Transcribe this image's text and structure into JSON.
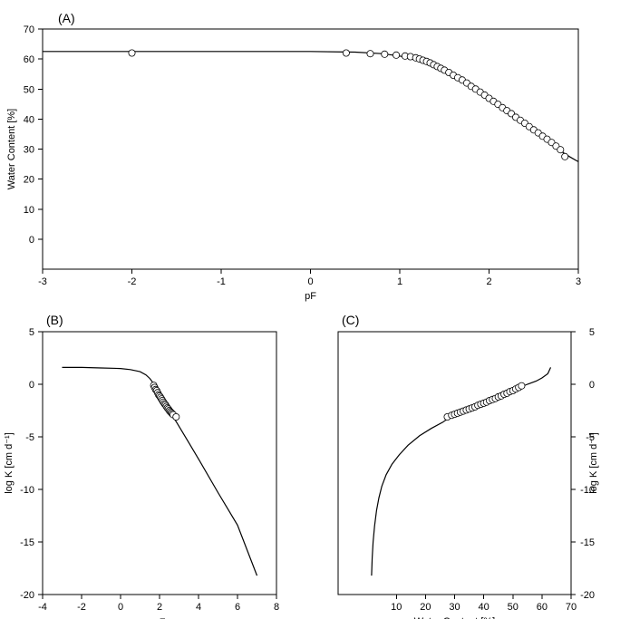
{
  "chart_data": [
    {
      "id": "A",
      "type": "scatter",
      "panel_label": "(A)",
      "xlabel": "pF",
      "ylabel": "Water Content [%]",
      "xlim": [
        -3,
        3
      ],
      "ylim": [
        -10,
        70
      ],
      "xticks": [
        -3,
        -2,
        -1,
        0,
        1,
        2,
        3
      ],
      "yticks": [
        0,
        10,
        20,
        30,
        40,
        50,
        60,
        70
      ],
      "grid": false,
      "series": [
        {
          "kind": "line",
          "x": [
            -3,
            -2,
            -1,
            0,
            0.5,
            0.8,
            1.0,
            1.1,
            1.2,
            1.3,
            1.4,
            1.5,
            1.6,
            1.7,
            1.8,
            1.9,
            2.0,
            2.1,
            2.2,
            2.3,
            2.4,
            2.5,
            2.6,
            2.7,
            2.8,
            2.9,
            3.0
          ],
          "y": [
            62.5,
            62.5,
            62.5,
            62.5,
            62.3,
            61.8,
            61.0,
            60.3,
            59.4,
            58.3,
            57.0,
            55.6,
            54.0,
            52.3,
            50.5,
            48.6,
            46.6,
            44.6,
            42.5,
            40.4,
            38.2,
            36.0,
            33.8,
            31.6,
            29.4,
            27.5,
            25.8
          ]
        },
        {
          "kind": "markers",
          "x": [
            -2,
            0.4,
            0.67,
            0.83,
            0.96,
            1.06,
            1.12,
            1.18,
            1.22,
            1.26,
            1.3,
            1.34,
            1.38,
            1.42,
            1.46,
            1.5,
            1.55,
            1.6,
            1.65,
            1.7,
            1.75,
            1.8,
            1.85,
            1.9,
            1.95,
            2.0,
            2.05,
            2.1,
            2.15,
            2.2,
            2.25,
            2.3,
            2.35,
            2.4,
            2.45,
            2.5,
            2.55,
            2.6,
            2.65,
            2.7,
            2.75,
            2.8,
            2.85
          ],
          "y": [
            62,
            62,
            61.8,
            61.6,
            61.3,
            61.0,
            60.8,
            60.4,
            60.0,
            59.6,
            59.2,
            58.7,
            58.1,
            57.5,
            56.9,
            56.3,
            55.5,
            54.6,
            53.8,
            53.0,
            52.0,
            50.9,
            50.0,
            49.0,
            48.0,
            46.9,
            45.9,
            44.9,
            43.8,
            42.8,
            41.8,
            40.6,
            39.6,
            38.6,
            37.5,
            36.4,
            35.4,
            34.3,
            33.3,
            32.2,
            31.0,
            29.8,
            27.5
          ]
        }
      ]
    },
    {
      "id": "B",
      "type": "scatter",
      "panel_label": "(B)",
      "xlabel": "pF",
      "ylabel": "log K [cm d⁻¹]",
      "xlim": [
        -4,
        8
      ],
      "ylim": [
        -20,
        5
      ],
      "xticks": [
        -4,
        -2,
        0,
        2,
        4,
        6,
        8
      ],
      "yticks": [
        -20,
        -15,
        -10,
        -5,
        0,
        5
      ],
      "grid": false,
      "series": [
        {
          "kind": "line",
          "x": [
            -3,
            -2,
            -1,
            0,
            0.5,
            1.0,
            1.3,
            1.5,
            1.7,
            1.9,
            2.1,
            2.3,
            2.5,
            2.7,
            2.9,
            3.5,
            4.0,
            5.0,
            6.0,
            7.0
          ],
          "y": [
            1.6,
            1.6,
            1.55,
            1.5,
            1.4,
            1.2,
            0.9,
            0.55,
            0.05,
            -0.6,
            -1.25,
            -1.9,
            -2.5,
            -3.1,
            -3.7,
            -5.55,
            -7.1,
            -10.3,
            -13.4,
            -18.2
          ]
        },
        {
          "kind": "markers",
          "x": [
            1.7,
            1.75,
            1.8,
            1.85,
            1.9,
            1.95,
            2.0,
            2.05,
            2.1,
            2.15,
            2.2,
            2.25,
            2.3,
            2.35,
            2.4,
            2.45,
            2.5,
            2.55,
            2.6,
            2.65,
            2.7,
            2.85
          ],
          "y": [
            -0.1,
            -0.3,
            -0.5,
            -0.6,
            -0.8,
            -1.0,
            -1.1,
            -1.25,
            -1.4,
            -1.55,
            -1.7,
            -1.85,
            -1.95,
            -2.1,
            -2.25,
            -2.35,
            -2.5,
            -2.6,
            -2.7,
            -2.8,
            -2.9,
            -3.1
          ]
        }
      ]
    },
    {
      "id": "C",
      "type": "scatter",
      "panel_label": "(C)",
      "xlabel": "Water Content [%]",
      "ylabel": "log K [cm d⁻¹]",
      "xlim": [
        -10,
        70
      ],
      "ylim": [
        -20,
        5
      ],
      "xticks": [
        10,
        20,
        30,
        40,
        50,
        60,
        70
      ],
      "yticks": [
        -20,
        -15,
        -10,
        -5,
        0,
        5
      ],
      "grid": false,
      "series": [
        {
          "kind": "line",
          "x": [
            1.5,
            1.7,
            2.0,
            2.5,
            3.2,
            4.0,
            5.0,
            6.5,
            8.5,
            11,
            14,
            18,
            22,
            26,
            28,
            30,
            35,
            40,
            45,
            50,
            55,
            58,
            60,
            62,
            63
          ],
          "y": [
            -18.2,
            -16.5,
            -15.0,
            -13.5,
            -12.0,
            -10.8,
            -9.7,
            -8.6,
            -7.6,
            -6.7,
            -5.8,
            -4.9,
            -4.2,
            -3.6,
            -3.2,
            -2.9,
            -2.3,
            -1.7,
            -1.15,
            -0.55,
            0.0,
            0.3,
            0.6,
            1.0,
            1.6
          ]
        },
        {
          "kind": "markers",
          "x": [
            27.5,
            29,
            30,
            31,
            32,
            33,
            34,
            35,
            36,
            37,
            38,
            39,
            40,
            41,
            42,
            43,
            44,
            45,
            46,
            47,
            48,
            49,
            50,
            51,
            52,
            53
          ],
          "y": [
            -3.1,
            -2.95,
            -2.85,
            -2.75,
            -2.65,
            -2.55,
            -2.45,
            -2.35,
            -2.25,
            -2.15,
            -2.0,
            -1.9,
            -1.8,
            -1.7,
            -1.55,
            -1.45,
            -1.35,
            -1.2,
            -1.1,
            -0.95,
            -0.85,
            -0.7,
            -0.6,
            -0.45,
            -0.3,
            -0.15
          ]
        }
      ]
    }
  ]
}
